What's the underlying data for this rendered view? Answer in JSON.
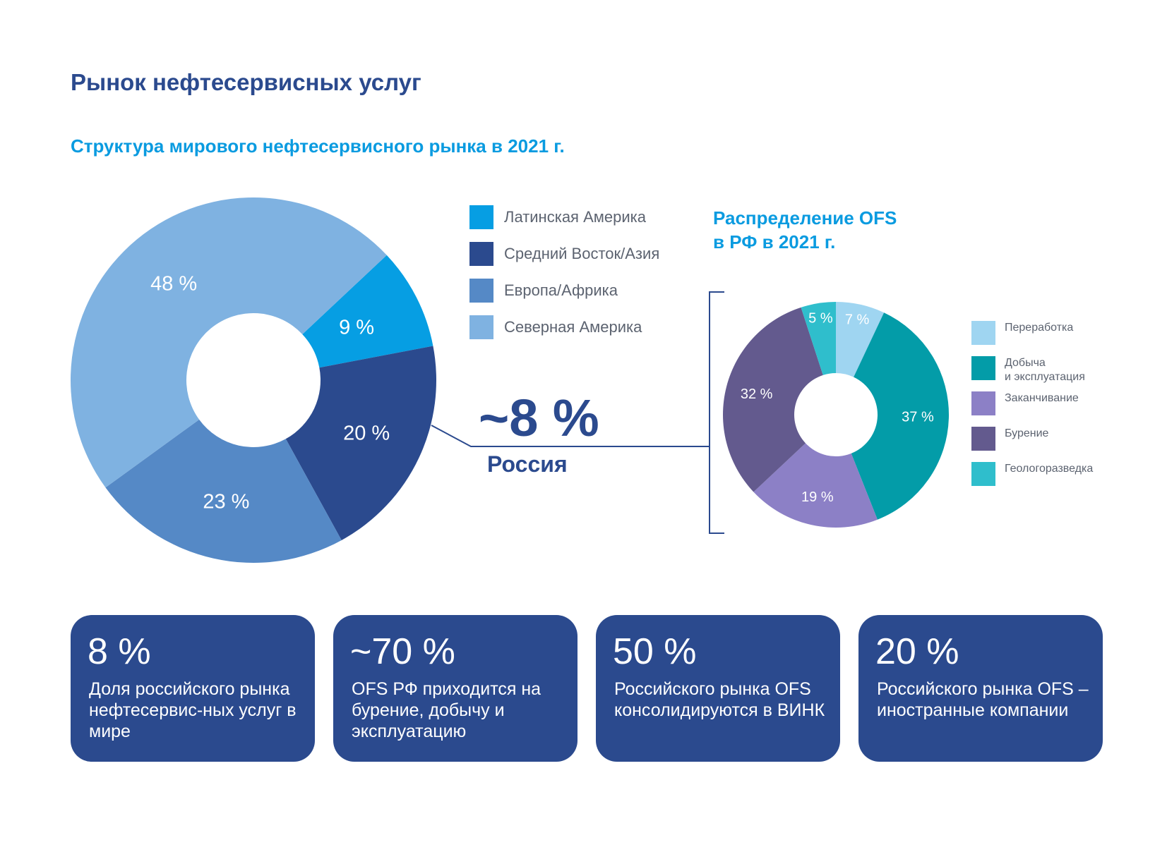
{
  "page": {
    "title": "Рынок нефтесервисных услуг",
    "subtitle": "Структура мирового нефтесервисного рынка в 2021 г.",
    "subtitle2_line1": "Распределение OFS",
    "subtitle2_line2": "в РФ в 2021 г."
  },
  "callout": {
    "value": "~8 %",
    "label": "Россия"
  },
  "colors": {
    "latam": "#069ee3",
    "me_asia": "#2b4a8e",
    "europe_africa": "#5589c6",
    "north_america": "#7fb2e1",
    "processing": "#9fd5f1",
    "production": "#039ca8",
    "completion": "#8c80c6",
    "drilling": "#635a8e",
    "exploration": "#2fbecc"
  },
  "chart_data": [
    {
      "type": "pie",
      "title": "Структура мирового нефтесервисного рынка в 2021 г.",
      "donut": true,
      "legend_position": "right",
      "categories": [
        "Латинская Америка",
        "Средний Восток/Азия",
        "Европа/Африка",
        "Северная Америка"
      ],
      "values": [
        9,
        20,
        23,
        48
      ],
      "value_labels": [
        "9 %",
        "20 %",
        "23 %",
        "48 %"
      ],
      "unit": "%"
    },
    {
      "type": "pie",
      "title": "Распределение OFS в РФ в 2021 г.",
      "donut": true,
      "legend_position": "right",
      "categories": [
        "Переработка",
        "Добыча и эксплуатация",
        "Заканчивание",
        "Бурение",
        "Геологоразведка"
      ],
      "legend_labels": [
        [
          "Переработка"
        ],
        [
          "Добыча",
          "и эксплуатация"
        ],
        [
          "Заканчивание"
        ],
        [
          "Бурение"
        ],
        [
          "Геологоразведка"
        ]
      ],
      "values": [
        7,
        37,
        19,
        32,
        5
      ],
      "value_labels": [
        "7 %",
        "37 %",
        "19 %",
        "32 %",
        "5 %"
      ],
      "unit": "%"
    }
  ],
  "cards": [
    {
      "value": "8 %",
      "text": "Доля российского рынка нефтесервис-ных услуг в мире"
    },
    {
      "value": "~70 %",
      "text": "OFS РФ приходится на бурение, добычу и эксплуатацию"
    },
    {
      "value": "50 %",
      "text": "Российского рынка OFS консолидируются в ВИНК"
    },
    {
      "value": "20 %",
      "text": "Российского рынка OFS – иностранные компании"
    }
  ]
}
